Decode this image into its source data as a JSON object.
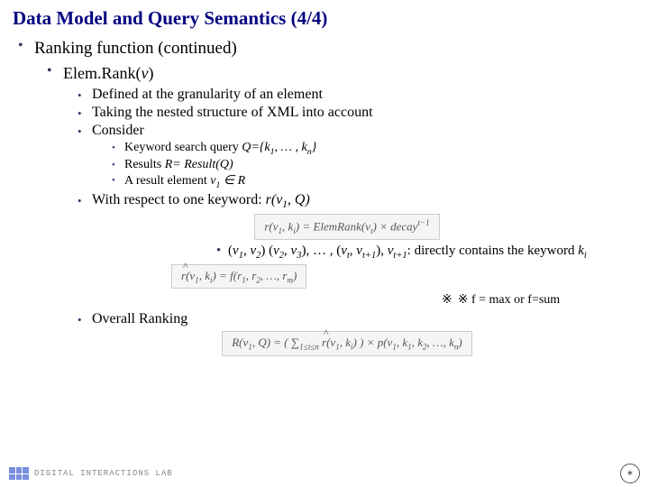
{
  "title": "Data Model and Query Semantics (4/4)",
  "l1": {
    "a": "Ranking function (continued)"
  },
  "l2": {
    "a_html": "Elem.Rank(<span class='it'>v</span>)"
  },
  "l3": {
    "a": "Defined at the granularity of an element",
    "b": "Taking the nested structure of XML into account",
    "c": "Consider",
    "d_html": "With respect to one keyword: <span class='it'>r(v<span class='sub'>1</span>, Q)</span>",
    "e": "Overall Ranking"
  },
  "l4": {
    "a_html": "Keyword search query <span class='it'>Q={k<span class='sub'>1</span>, … , k<span class='sub'>n</span>}</span>",
    "b_html": "Results <span class='it'>R= Result(Q)</span>",
    "c_html": "A result element <span class='it'>v<span class='sub'>1</span> ∈ R</span>"
  },
  "formula1_html": "r(v<span class='sub'>1</span>, k<span class='sub'>i</span>) = ElemRank(v<span class='sub'>t</span>) × decay<span class='sup'>t−1</span>",
  "chain_html": "(<span class='it'>v<span class='sub'>1</span>, v<span class='sub'>2</span></span>) (<span class='it'>v<span class='sub'>2</span>, v<span class='sub'>3</span></span>), … , (<span class='it'>v<span class='sub'>t</span>, v<span class='sub'>t+1</span></span>), <span class='it'>v<span class='sub'>t+1</span></span>: directly contains the keyword <span class='it'>k<span class='sub'>i</span></span>",
  "formula2_html": "<span class='hat'>r</span>(v<span class='sub'>1</span>, k<span class='sub'>i</span>) = f(r<span class='sub'>1</span>, r<span class='sub'>2</span>, …, r<span class='sub'>m</span>)",
  "fnote_html": "※ f = max  or  f=sum",
  "formula3_html": "R(v<span class='sub'>1</span>, Q) = ( ∑<span class='sub'>1≤i≤n</span> <span class='hat'>r</span>(v<span class='sub'>1</span>, k<span class='sub'>i</span>) ) × p(v<span class='sub'>1</span>, k<span class='sub'>1</span>, k<span class='sub'>2</span>, …, k<span class='sub'>n</span>)",
  "footer": {
    "lab": "DIGITAL INTERACTIONS LAB"
  },
  "colors": {
    "title": "#000080",
    "bullet": "#333366",
    "bg": "#ffffff"
  }
}
